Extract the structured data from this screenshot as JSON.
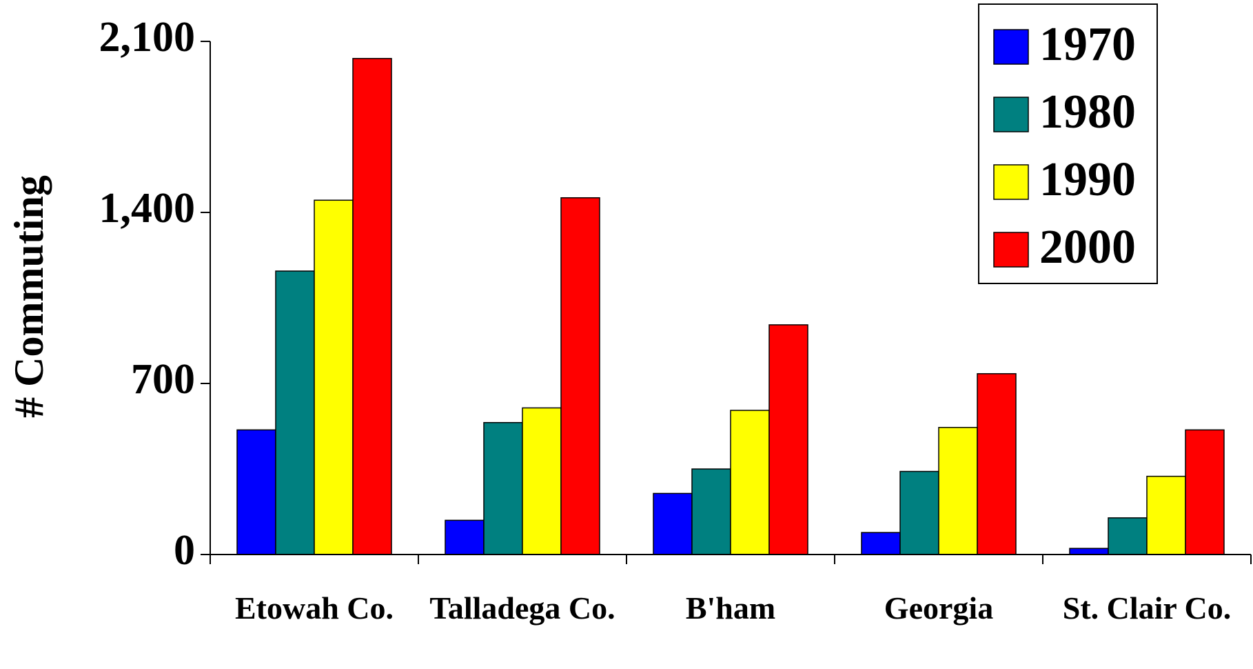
{
  "chart_data": {
    "type": "bar",
    "y_label": "# Commuting",
    "categories": [
      "Etowah Co.",
      "Talladega Co.",
      "B'ham",
      "Georgia",
      "St. Clair Co."
    ],
    "series": [
      {
        "name": "1970",
        "color": "#0000ff",
        "values": [
          510,
          140,
          250,
          90,
          25
        ]
      },
      {
        "name": "1980",
        "color": "#008080",
        "values": [
          1160,
          540,
          350,
          340,
          150
        ]
      },
      {
        "name": "1990",
        "color": "#ffff00",
        "values": [
          1450,
          600,
          590,
          520,
          320
        ]
      },
      {
        "name": "2000",
        "color": "#ff0000",
        "values": [
          2030,
          1460,
          940,
          740,
          510
        ]
      }
    ],
    "ylim": [
      0,
      2100
    ],
    "yticks": [
      0,
      700,
      {
        "value": 1400,
        "label": "1,400"
      },
      {
        "value": 2100,
        "label": "2,100"
      }
    ],
    "legend": "top-right"
  }
}
